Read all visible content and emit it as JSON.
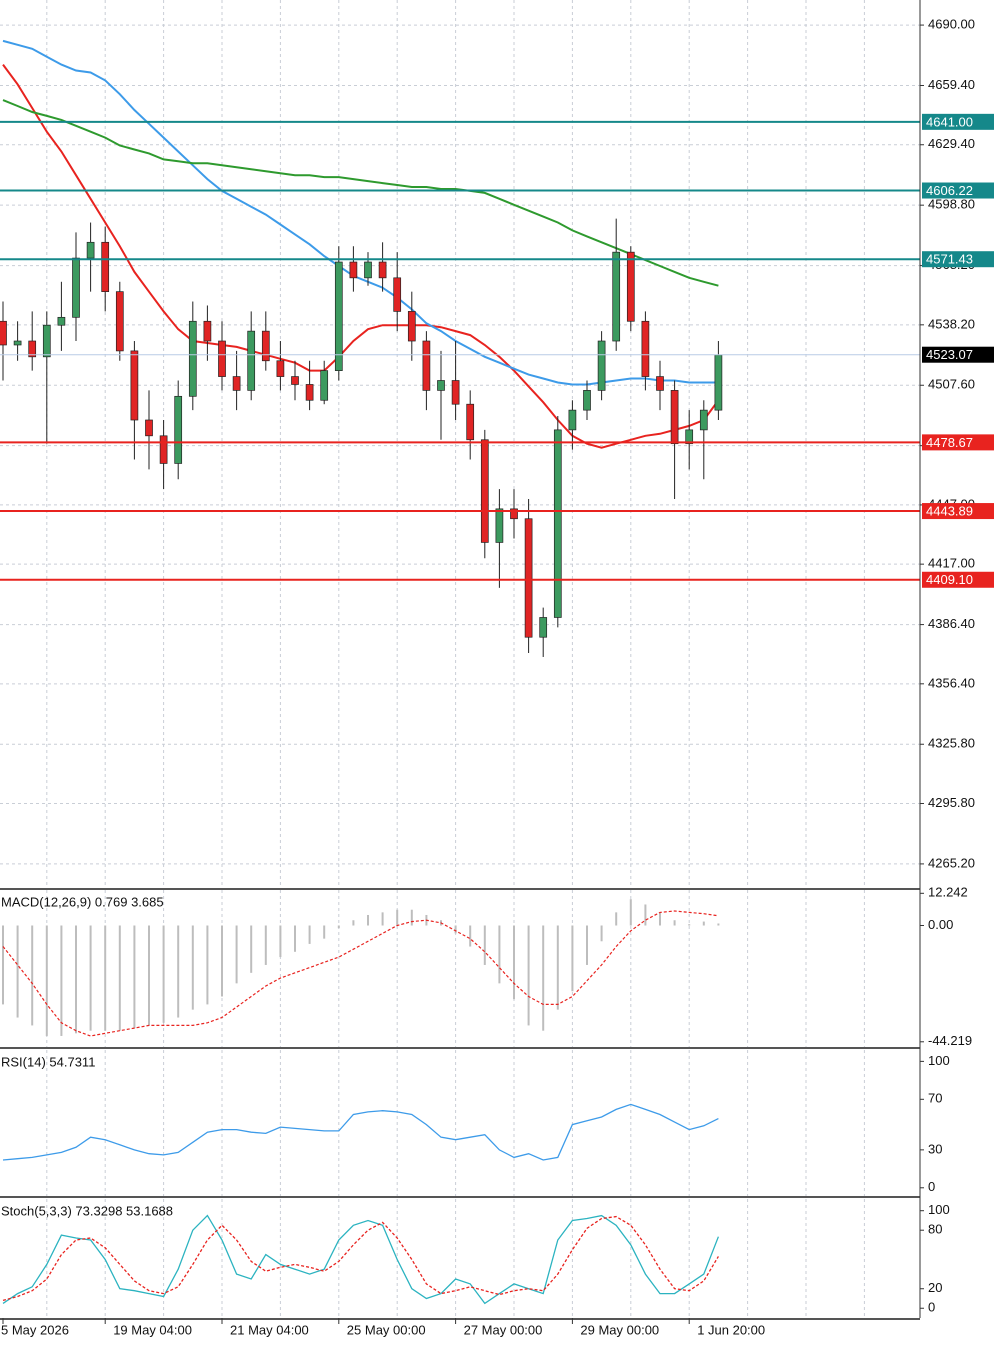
{
  "chart_data": [
    {
      "type": "candlestick",
      "categories": [
        "5 May 2026",
        null,
        null,
        null,
        null,
        null,
        null,
        "19 May 04:00",
        null,
        null,
        null,
        null,
        null,
        null,
        null,
        "21 May 04:00",
        null,
        null,
        null,
        null,
        null,
        null,
        null,
        "25 May 00:00",
        null,
        null,
        null,
        null,
        null,
        null,
        null,
        "27 May 00:00",
        null,
        null,
        null,
        null,
        null,
        null,
        null,
        "29 May 00:00",
        null,
        null,
        null,
        null,
        null,
        null,
        null,
        "1 Jun 20:00",
        null,
        null
      ],
      "open": [
        4540,
        4528,
        4530,
        4522,
        4538,
        4542,
        4572,
        4580,
        4555,
        4525,
        4490,
        4482,
        4468,
        4502,
        4540,
        4530,
        4512,
        4505,
        4535,
        4520,
        4512,
        4508,
        4500,
        4515,
        4570,
        4562,
        4570,
        4562,
        4545,
        4530,
        4505,
        4510,
        4498,
        4480,
        4428,
        4445,
        4440,
        4380,
        4390,
        4485,
        4495,
        4505,
        4530,
        4575,
        4540,
        4512,
        4505,
        4478,
        4485,
        4495
      ],
      "high": [
        4550,
        4540,
        4545,
        4545,
        4560,
        4585,
        4590,
        4588,
        4560,
        4530,
        4505,
        4490,
        4510,
        4550,
        4548,
        4540,
        4525,
        4545,
        4545,
        4530,
        4520,
        4520,
        4520,
        4578,
        4578,
        4575,
        4580,
        4575,
        4555,
        4535,
        4525,
        4530,
        4505,
        4485,
        4455,
        4455,
        4450,
        4395,
        4492,
        4500,
        4510,
        4535,
        4592,
        4578,
        4545,
        4520,
        4510,
        4495,
        4500,
        4530
      ],
      "low": [
        4510,
        4520,
        4515,
        4478,
        4525,
        4530,
        4555,
        4545,
        4520,
        4470,
        4465,
        4455,
        4460,
        4495,
        4520,
        4505,
        4495,
        4500,
        4515,
        4505,
        4500,
        4495,
        4498,
        4510,
        4555,
        4558,
        4555,
        4535,
        4520,
        4495,
        4480,
        4490,
        4470,
        4420,
        4405,
        4430,
        4372,
        4370,
        4385,
        4475,
        4490,
        4500,
        4525,
        4535,
        4505,
        4495,
        4450,
        4465,
        4460,
        4490
      ],
      "close": [
        4528,
        4530,
        4522,
        4538,
        4542,
        4572,
        4580,
        4555,
        4525,
        4490,
        4482,
        4468,
        4502,
        4540,
        4530,
        4512,
        4505,
        4535,
        4520,
        4512,
        4508,
        4500,
        4515,
        4570,
        4562,
        4570,
        4562,
        4545,
        4530,
        4505,
        4510,
        4498,
        4480,
        4428,
        4445,
        4440,
        4380,
        4390,
        4485,
        4495,
        4505,
        4530,
        4575,
        4540,
        4512,
        4505,
        4478,
        4485,
        4495,
        4523
      ],
      "up_color": "#3c9a5f",
      "down_color": "#e02424",
      "series": [
        {
          "color": "#e8231f",
          "values": [
            4670,
            4660,
            4648,
            4636,
            4626,
            4614,
            4602,
            4590,
            4578,
            4565,
            4555,
            4545,
            4536,
            4530,
            4529,
            4528,
            4527,
            4525,
            4523,
            4521,
            4519,
            4515,
            4515,
            4522,
            4530,
            4536,
            4538,
            4538,
            4538,
            4538,
            4537,
            4535,
            4533,
            4528,
            4522,
            4515,
            4507,
            4499,
            4490,
            4482,
            4478,
            4476,
            4478,
            4480,
            4482,
            4483,
            4485,
            4487,
            4490,
            4500
          ]
        },
        {
          "color": "#3d9be9",
          "values": [
            4682,
            4680,
            4678,
            4674,
            4670,
            4667,
            4666,
            4662,
            4655,
            4647,
            4640,
            4633,
            4626,
            4619,
            4612,
            4606,
            4602,
            4598,
            4594,
            4589,
            4584,
            4579,
            4573,
            4568,
            4563,
            4560,
            4557,
            4552,
            4546,
            4539,
            4535,
            4530,
            4526,
            4522,
            4519,
            4516,
            4513,
            4511,
            4509,
            4508,
            4508,
            4509,
            4510,
            4511,
            4511,
            4510,
            4510,
            4509,
            4509,
            4509
          ]
        },
        {
          "color": "#2e9a2e",
          "values": [
            4652,
            4649,
            4646,
            4644,
            4642,
            4639,
            4636,
            4633,
            4629,
            4627,
            4625,
            4622,
            4621,
            4620,
            4620,
            4619,
            4618,
            4617,
            4616,
            4615,
            4614,
            4614,
            4613,
            4613,
            4612,
            4611,
            4610,
            4609,
            4608,
            4608,
            4607,
            4607,
            4606,
            4605,
            4602,
            4599,
            4596,
            4593,
            4590,
            4586,
            4583,
            4580,
            4577,
            4574,
            4571,
            4568,
            4565,
            4562,
            4560,
            4558
          ]
        }
      ],
      "levels": [
        {
          "value": 4641.0,
          "label": "4641.00",
          "color": "#15888a"
        },
        {
          "value": 4606.22,
          "label": "4606.22",
          "color": "#15888a"
        },
        {
          "value": 4571.43,
          "label": "4571.43",
          "color": "#15888a"
        },
        {
          "value": 4478.67,
          "label": "4478.67",
          "color": "#e8231f"
        },
        {
          "value": 4443.89,
          "label": "4443.89",
          "color": "#e8231f"
        },
        {
          "value": 4409.1,
          "label": "4409.10",
          "color": "#e8231f"
        }
      ],
      "last_price": {
        "value": 4523.07,
        "label": "4523.07"
      },
      "ylim": [
        4253.0,
        4702.7
      ],
      "yticks": [
        {
          "value": 4690,
          "label": "4690.00"
        },
        {
          "value": 4659.4,
          "label": "4659.40"
        },
        {
          "value": 4629.4,
          "label": "4629.40"
        },
        {
          "value": 4598.8,
          "label": "4598.80"
        },
        {
          "value": 4568.2,
          "label": "4568.20"
        },
        {
          "value": 4538.2,
          "label": "4538.20"
        },
        {
          "value": 4507.6,
          "label": "4507.60"
        },
        {
          "value": 4477,
          "label": "4477.00"
        },
        {
          "value": 4447,
          "label": "4447.00"
        },
        {
          "value": 4417,
          "label": "4417.00"
        },
        {
          "value": 4386.4,
          "label": "4386.40"
        },
        {
          "value": 4356.4,
          "label": "4356.40"
        },
        {
          "value": 4325.8,
          "label": "4325.80"
        },
        {
          "value": 4295.8,
          "label": "4295.80"
        },
        {
          "value": 4265.2,
          "label": "4265.20"
        }
      ],
      "grid": true
    },
    {
      "type": "macd",
      "title": "MACD(12,26,9) 0.769 3.685",
      "histogram": {
        "color": "#bdbdbd",
        "values": [
          -30,
          -35,
          -38,
          -42,
          -42,
          -41,
          -40,
          -40,
          -40,
          -39,
          -38,
          -37,
          -35,
          -32,
          -30,
          -27,
          -22,
          -18,
          -15,
          -12,
          -10,
          -7,
          -5,
          -1,
          2,
          4,
          5,
          6,
          6,
          4,
          2,
          -3,
          -8,
          -15,
          -22,
          -28,
          -38,
          -40,
          -32,
          -25,
          -15,
          -6,
          5,
          10,
          8,
          5,
          2,
          0.5,
          1.5,
          0.769
        ]
      },
      "signal": {
        "color": "#e8231f",
        "values": [
          -8,
          -15,
          -22,
          -30,
          -37,
          -40,
          -42,
          -41,
          -40,
          -39,
          -38,
          -38,
          -38,
          -38,
          -37,
          -35,
          -31,
          -27,
          -23,
          -20,
          -18,
          -16,
          -14,
          -12,
          -9,
          -6,
          -3,
          0,
          1.5,
          2,
          1,
          -2,
          -5,
          -10,
          -16,
          -22,
          -27,
          -30,
          -30,
          -27,
          -21,
          -15,
          -8,
          -2,
          2,
          5,
          5.5,
          5,
          4.5,
          3.685
        ]
      },
      "ylim": [
        -46.2,
        13.5
      ],
      "yticks": [
        12.242,
        {
          "value": 0,
          "label": "0.00"
        },
        -44.219
      ]
    },
    {
      "type": "line",
      "title": "RSI(14) 54.7311",
      "series": [
        {
          "color": "#3d9be9",
          "dashed": false,
          "values": [
            22,
            23,
            24,
            26,
            28,
            32,
            40,
            38,
            34,
            30,
            27,
            26,
            28,
            36,
            44,
            46,
            46,
            44,
            43,
            48,
            47,
            46,
            45,
            45,
            58,
            60,
            61,
            60,
            58,
            50,
            40,
            38,
            40,
            42,
            30,
            24,
            27,
            22,
            24,
            50,
            53,
            56,
            62,
            66,
            62,
            58,
            52,
            46,
            49,
            54.7311
          ]
        }
      ],
      "ylim": [
        -6.5,
        109
      ],
      "yticks": [
        100,
        70,
        30,
        0
      ]
    },
    {
      "type": "line",
      "title": "Stoch(5,3,3) 73.3298 53.1688",
      "series": [
        {
          "color": "#2bb3c0",
          "dashed": false,
          "values": [
            5,
            15,
            22,
            45,
            75,
            72,
            70,
            50,
            20,
            18,
            15,
            12,
            40,
            80,
            95,
            70,
            35,
            30,
            55,
            45,
            40,
            35,
            40,
            70,
            85,
            90,
            85,
            50,
            20,
            10,
            15,
            30,
            25,
            5,
            15,
            25,
            20,
            15,
            70,
            90,
            92,
            95,
            85,
            65,
            35,
            15,
            15,
            25,
            35,
            73.3298
          ]
        },
        {
          "color": "#e8231f",
          "dashed": true,
          "values": [
            8,
            12,
            18,
            30,
            55,
            70,
            72,
            62,
            45,
            28,
            18,
            15,
            22,
            45,
            70,
            85,
            70,
            48,
            38,
            42,
            45,
            42,
            38,
            48,
            65,
            80,
            88,
            72,
            50,
            25,
            15,
            18,
            22,
            18,
            14,
            18,
            20,
            18,
            35,
            60,
            82,
            92,
            94,
            85,
            65,
            40,
            20,
            18,
            28,
            53.1688
          ]
        }
      ],
      "ylim": [
        -10,
        112
      ],
      "yticks": [
        100,
        80,
        20,
        0
      ]
    }
  ]
}
